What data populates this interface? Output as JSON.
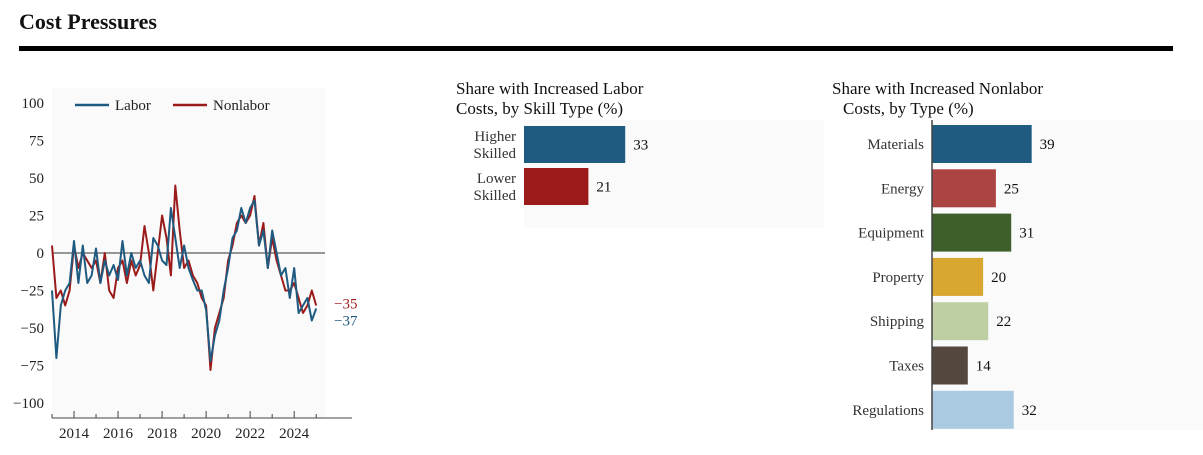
{
  "page": {
    "title": "Cost Pressures"
  },
  "chart_data": [
    {
      "type": "line",
      "legend": {
        "position": "top-left",
        "entries": [
          "Labor",
          "Nonlabor"
        ]
      },
      "ylim": [
        -110,
        110
      ],
      "yticks": [
        100,
        75,
        50,
        25,
        0,
        -25,
        -50,
        -75,
        -100
      ],
      "ytick_labels": [
        "100",
        "75",
        "50",
        "25",
        "0",
        "−25",
        "−50",
        "−75",
        "−100"
      ],
      "xlim": [
        2013.0,
        2025.4
      ],
      "xticks": [
        2014,
        2016,
        2018,
        2020,
        2022,
        2024
      ],
      "xtick_labels": [
        "2014",
        "2016",
        "2018",
        "2020",
        "2022",
        "2024"
      ],
      "grid": false,
      "series": [
        {
          "name": "Labor",
          "color": "#1f5a80",
          "end_label": "−37",
          "x": [
            2013.0,
            2013.2,
            2013.4,
            2013.6,
            2013.8,
            2014.0,
            2014.2,
            2014.4,
            2014.6,
            2014.8,
            2015.0,
            2015.2,
            2015.4,
            2015.6,
            2015.8,
            2016.0,
            2016.2,
            2016.4,
            2016.6,
            2016.8,
            2017.0,
            2017.2,
            2017.4,
            2017.6,
            2017.8,
            2018.0,
            2018.2,
            2018.4,
            2018.6,
            2018.8,
            2019.0,
            2019.2,
            2019.4,
            2019.6,
            2019.8,
            2020.0,
            2020.2,
            2020.4,
            2020.6,
            2020.8,
            2021.0,
            2021.2,
            2021.4,
            2021.6,
            2021.8,
            2022.0,
            2022.2,
            2022.4,
            2022.6,
            2022.8,
            2023.0,
            2023.2,
            2023.4,
            2023.6,
            2023.8,
            2024.0,
            2024.2,
            2024.4,
            2024.6,
            2024.8,
            2025.0
          ],
          "values": [
            -25,
            -70,
            -35,
            -25,
            -20,
            8,
            -20,
            5,
            -20,
            -15,
            3,
            -20,
            -5,
            -15,
            -8,
            -18,
            8,
            -15,
            0,
            -10,
            -5,
            -15,
            -20,
            10,
            5,
            -5,
            -8,
            30,
            10,
            -10,
            5,
            -10,
            -18,
            -25,
            -25,
            -38,
            -72,
            -55,
            -45,
            -25,
            -10,
            10,
            15,
            30,
            20,
            30,
            35,
            5,
            15,
            -10,
            15,
            0,
            -15,
            -10,
            -30,
            -10,
            -40,
            -35,
            -30,
            -45,
            -37
          ]
        },
        {
          "name": "Nonlabor",
          "color": "#9b1b1b",
          "end_label": "−35",
          "x": [
            2013.0,
            2013.2,
            2013.4,
            2013.6,
            2013.8,
            2014.0,
            2014.2,
            2014.4,
            2014.6,
            2014.8,
            2015.0,
            2015.2,
            2015.4,
            2015.6,
            2015.8,
            2016.0,
            2016.2,
            2016.4,
            2016.6,
            2016.8,
            2017.0,
            2017.2,
            2017.4,
            2017.6,
            2017.8,
            2018.0,
            2018.2,
            2018.4,
            2018.6,
            2018.8,
            2019.0,
            2019.2,
            2019.4,
            2019.6,
            2019.8,
            2020.0,
            2020.2,
            2020.4,
            2020.6,
            2020.8,
            2021.0,
            2021.2,
            2021.4,
            2021.6,
            2021.8,
            2022.0,
            2022.2,
            2022.4,
            2022.6,
            2022.8,
            2023.0,
            2023.2,
            2023.4,
            2023.6,
            2023.8,
            2024.0,
            2024.2,
            2024.4,
            2024.6,
            2024.8,
            2025.0
          ],
          "values": [
            5,
            -30,
            -25,
            -35,
            -25,
            5,
            -10,
            0,
            -5,
            -10,
            -5,
            -20,
            0,
            -25,
            -30,
            -10,
            -5,
            -20,
            -5,
            -15,
            -8,
            18,
            0,
            -25,
            0,
            25,
            10,
            -15,
            45,
            15,
            -10,
            -5,
            -15,
            -20,
            -30,
            -35,
            -78,
            -50,
            -40,
            -30,
            -5,
            5,
            20,
            25,
            20,
            25,
            38,
            5,
            20,
            -10,
            10,
            -5,
            -15,
            -25,
            -25,
            -20,
            -30,
            -40,
            -35,
            -25,
            -35
          ]
        }
      ]
    },
    {
      "type": "bar",
      "orientation": "horizontal",
      "title": "Share with Increased Labor Costs, by Skill Type (%)",
      "title_lines": [
        "Share with Increased Labor",
        "Costs, by Skill Type (%)"
      ],
      "xlim": [
        0,
        45
      ],
      "categories": [
        {
          "label": "Higher Skilled",
          "label_lines": [
            "Higher",
            "Skilled"
          ],
          "value": 33,
          "value_label": "33",
          "color": "#1f5a80"
        },
        {
          "label": "Lower Skilled",
          "label_lines": [
            "Lower",
            "Skilled"
          ],
          "value": 21,
          "value_label": "21",
          "color": "#9b1b1b"
        }
      ]
    },
    {
      "type": "bar",
      "orientation": "horizontal",
      "title": "Share with Increased Nonlabor Costs, by Type (%)",
      "title_lines": [
        "Share with Increased Nonlabor",
        "Costs, by Type (%)"
      ],
      "xlim": [
        0,
        45
      ],
      "categories": [
        {
          "label": "Materials",
          "value": 39,
          "value_label": "39",
          "color": "#1f5a80"
        },
        {
          "label": "Energy",
          "value": 25,
          "value_label": "25",
          "color": "#ad4444"
        },
        {
          "label": "Equipment",
          "value": 31,
          "value_label": "31",
          "color": "#3e5e2c"
        },
        {
          "label": "Property",
          "value": 20,
          "value_label": "20",
          "color": "#d9a630"
        },
        {
          "label": "Shipping",
          "value": 22,
          "value_label": "22",
          "color": "#becfa4"
        },
        {
          "label": "Taxes",
          "value": 14,
          "value_label": "14",
          "color": "#54473e"
        },
        {
          "label": "Regulations",
          "value": 32,
          "value_label": "32",
          "color": "#a9cae0"
        }
      ]
    }
  ]
}
